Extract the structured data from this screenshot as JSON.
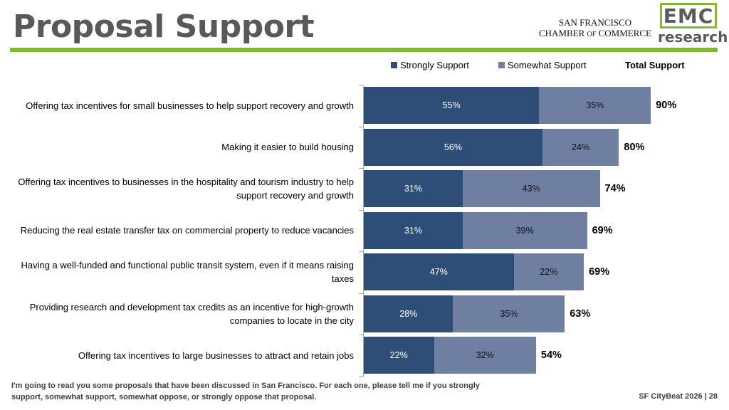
{
  "header": {
    "title": "Proposal Support",
    "chamber_line1": "SAN FRANCISCO",
    "chamber_line2_a": "CHAMBER",
    "chamber_line2_of": "OF",
    "chamber_line2_b": "COMMERCE",
    "emc_logo": "EMC",
    "emc_sub": "research"
  },
  "colors": {
    "strongly_support": "#2e4e78",
    "somewhat_support": "#6f7fa1",
    "accent": "#7cba2e"
  },
  "chart_data": {
    "type": "bar",
    "orientation": "horizontal",
    "stacked": true,
    "title": "",
    "legend": [
      "Strongly Support",
      "Somewhat Support"
    ],
    "total_label": "Total Support",
    "categories": [
      "Offering tax incentives for small businesses to help support recovery and growth",
      "Making it easier to build housing",
      "Offering tax incentives to businesses in the hospitality and tourism industry to help support recovery and growth",
      "Reducing the real estate transfer tax on commercial property to reduce vacancies",
      "Having a well-funded and functional public transit system, even if it means raising taxes",
      "Providing research and development tax credits as an incentive for high-growth companies to locate in the city",
      "Offering tax incentives to large businesses to attract and retain jobs"
    ],
    "series": [
      {
        "name": "Strongly Support",
        "values": [
          55,
          56,
          31,
          31,
          47,
          28,
          22
        ]
      },
      {
        "name": "Somewhat Support",
        "values": [
          35,
          24,
          43,
          39,
          22,
          35,
          32
        ]
      }
    ],
    "totals": [
      90,
      80,
      74,
      69,
      69,
      63,
      54
    ],
    "value_suffix": "%",
    "xlim": [
      0,
      100
    ]
  },
  "footer": {
    "note": "I'm going to read you some proposals that have been discussed in San Francisco. For each one, please tell me if you strongly support, somewhat support, somewhat oppose, or strongly oppose that proposal.",
    "page_ref": "SF CityBeat 2026 | 28"
  }
}
